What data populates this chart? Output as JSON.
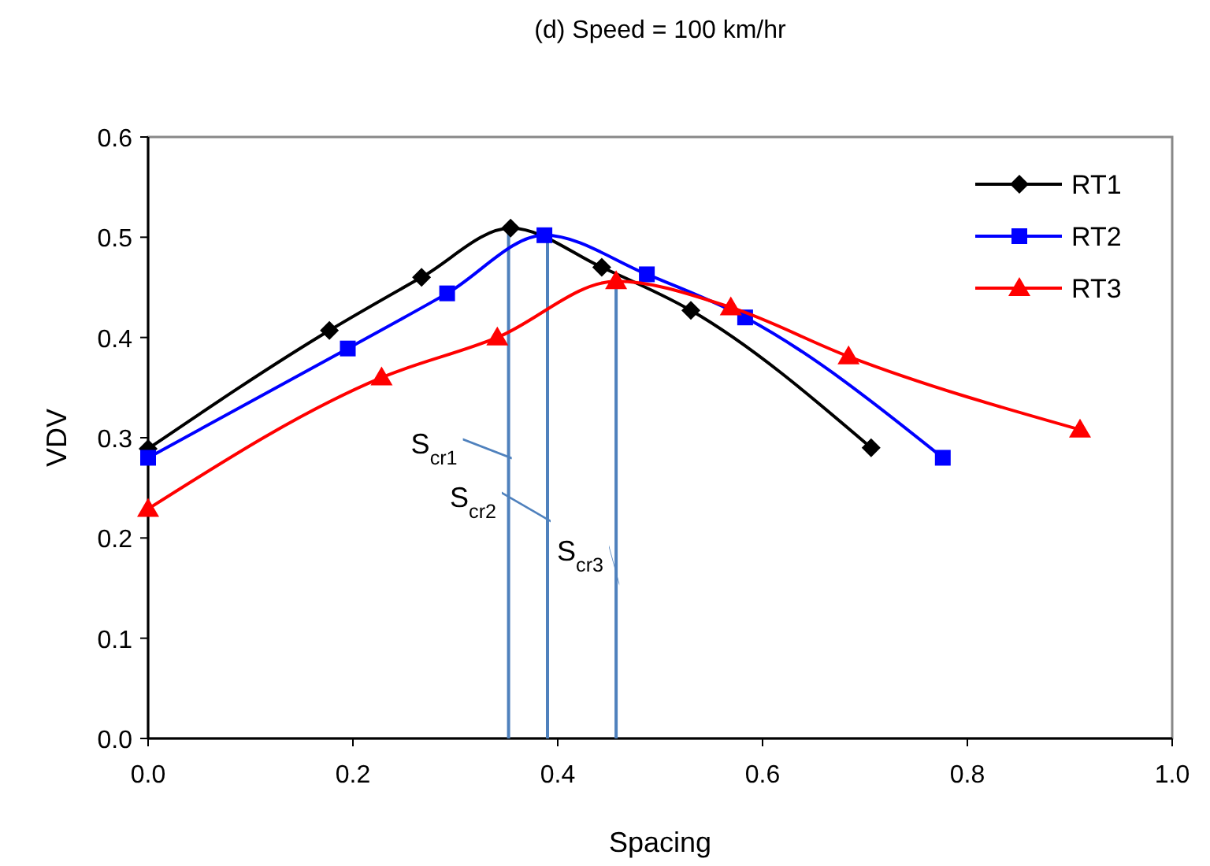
{
  "chart_data": {
    "type": "line",
    "title": "(d) Speed = 100 km/hr",
    "xlabel": "Spacing",
    "ylabel": "VDV",
    "series": [
      {
        "name": "RT1",
        "color": "#000000",
        "marker": "diamond",
        "x": [
          0,
          0.177,
          0.267,
          0.354,
          0.443,
          0.53,
          0.706
        ],
        "values": [
          0.289,
          0.407,
          0.46,
          0.509,
          0.47,
          0.427,
          0.29
        ]
      },
      {
        "name": "RT2",
        "color": "#0000ff",
        "marker": "square",
        "x": [
          0,
          0.195,
          0.292,
          0.387,
          0.487,
          0.583,
          0.776
        ],
        "values": [
          0.28,
          0.389,
          0.444,
          0.502,
          0.463,
          0.42,
          0.28
        ]
      },
      {
        "name": "RT3",
        "color": "#ff0000",
        "marker": "triangle",
        "x": [
          0,
          0.228,
          0.341,
          0.457,
          0.569,
          0.684,
          0.91
        ],
        "values": [
          0.229,
          0.36,
          0.4,
          0.456,
          0.43,
          0.381,
          0.308
        ]
      }
    ],
    "ref_lines": [
      {
        "axis": "x",
        "value": 0.352,
        "label": "S$_{cr1}$",
        "color": "#4f81bd"
      },
      {
        "axis": "x",
        "value": 0.39,
        "label": "S$_{cr2}$",
        "color": "#4f81bd"
      },
      {
        "axis": "x",
        "value": 0.457,
        "label": "S$_{cr3}$",
        "color": "#4f81bd"
      }
    ],
    "xlim": [
      0,
      1
    ],
    "xticks": [
      {
        "value": 0,
        "label": "0.0"
      },
      {
        "value": 0.2,
        "label": "0.2"
      },
      {
        "value": 0.4,
        "label": "0.4"
      },
      {
        "value": 0.6,
        "label": "0.6"
      },
      {
        "value": 0.8,
        "label": "0.8"
      },
      {
        "value": 1,
        "label": "1.0"
      }
    ],
    "ylim": [
      0,
      0.6
    ],
    "yticks": [
      {
        "value": 0,
        "label": "0.0"
      },
      {
        "value": 0.1,
        "label": "0.1"
      },
      {
        "value": 0.2,
        "label": "0.2"
      },
      {
        "value": 0.3,
        "label": "0.3"
      },
      {
        "value": 0.4,
        "label": "0.4"
      },
      {
        "value": 0.5,
        "label": "0.5"
      },
      {
        "value": 0.6,
        "label": "0.6"
      }
    ],
    "grid": false,
    "legend": "top right",
    "line_style": "solid"
  }
}
